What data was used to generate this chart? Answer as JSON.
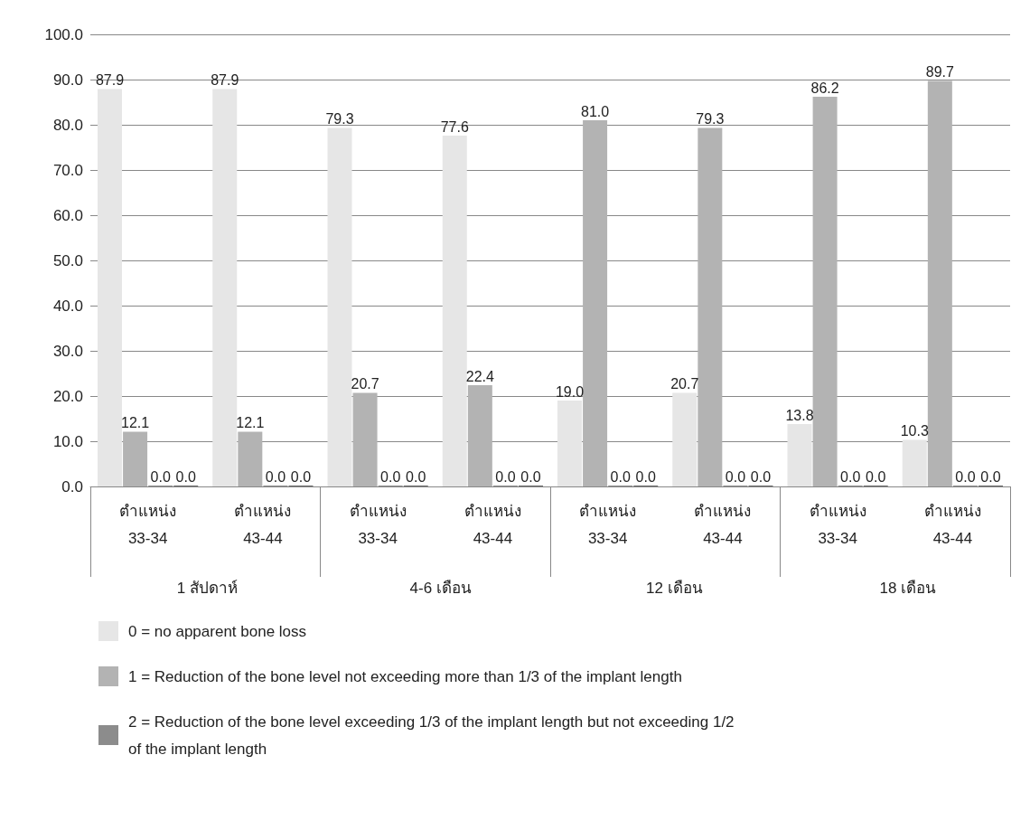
{
  "chart_data": {
    "type": "bar",
    "categories": [
      "ตำแหน่ง\n33-34",
      "ตำแหน่ง\n43-44",
      "ตำแหน่ง\n33-34",
      "ตำแหน่ง\n43-44",
      "ตำแหน่ง\n33-34",
      "ตำแหน่ง\n43-44",
      "ตำแหน่ง\n33-34",
      "ตำแหน่ง\n43-44"
    ],
    "annotations": [
      "1 สัปดาห์",
      "4-6 เดือน",
      "12 เดือน",
      "18 เดือน"
    ],
    "series": [
      {
        "name": "0 = no apparent bone loss",
        "color": "#e6e6e6",
        "values": [
          87.9,
          87.9,
          79.3,
          77.6,
          19.0,
          20.7,
          13.8,
          10.3
        ],
        "value_labels": [
          "87.9",
          "87.9",
          "79.3",
          "77.6",
          "19.0",
          "20.7",
          "13.8",
          "10.3"
        ]
      },
      {
        "name": "1 = Reduction of the bone level not exceeding more than 1/3 of the implant length",
        "color": "#b3b3b3",
        "values": [
          12.1,
          12.1,
          20.7,
          22.4,
          81.0,
          79.3,
          86.2,
          89.7
        ],
        "value_labels": [
          "12.1",
          "12.1",
          "20.7",
          "22.4",
          "81.0",
          "79.3",
          "86.2",
          "89.7"
        ]
      },
      {
        "name": "2 = Reduction of the bone level exceeding 1/3 of the implant length but not exceeding 1/2 of the implant length",
        "color": "#8c8c8c",
        "values": [
          0,
          0,
          0,
          0,
          0,
          0,
          0,
          0
        ],
        "value_labels": [
          "0.0",
          "0.0",
          "0.0",
          "0.0",
          "0.0",
          "0.0",
          "0.0",
          "0.0"
        ]
      },
      {
        "color": "#666666",
        "values": [
          0,
          0,
          0,
          0,
          0,
          0,
          0,
          0
        ],
        "value_labels": [
          "0.0",
          "0.0",
          "0.0",
          "0.0",
          "0.0",
          "0.0",
          "0.0",
          "0.0"
        ]
      }
    ],
    "ylim": [
      0,
      100
    ],
    "yticks": [
      {
        "value": 0,
        "label": "0.0"
      },
      {
        "value": 10,
        "label": "10.0"
      },
      {
        "value": 20,
        "label": "20.0"
      },
      {
        "value": 30,
        "label": "30.0"
      },
      {
        "value": 40,
        "label": "40.0"
      },
      {
        "value": 50,
        "label": "50.0"
      },
      {
        "value": 60,
        "label": "60.0"
      },
      {
        "value": 70,
        "label": "70.0"
      },
      {
        "value": 80,
        "label": "80.0"
      },
      {
        "value": 90,
        "label": "90.0"
      },
      {
        "value": 100,
        "label": "100.0"
      }
    ],
    "grid": "y",
    "legend": "bottom left"
  }
}
